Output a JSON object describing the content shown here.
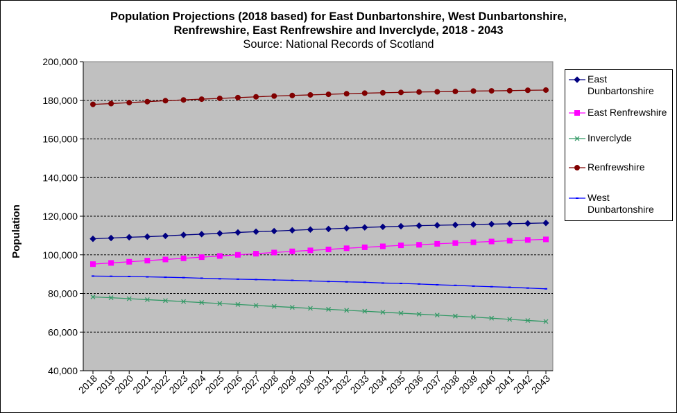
{
  "chart_data": {
    "type": "line",
    "title": "Population Projections (2018 based) for East Dunbartonshire, West Dunbartonshire,",
    "title_line2": "Renfrewshire, East Renfrewshire and Inverclyde, 2018 - 2043",
    "subtitle": "Source: National Records of Scotland",
    "xlabel": "",
    "ylabel": "Population",
    "ylim": [
      40000,
      200000
    ],
    "yticks": [
      40000,
      60000,
      80000,
      100000,
      120000,
      140000,
      160000,
      180000,
      200000
    ],
    "ytick_labels": [
      "40,000",
      "60,000",
      "80,000",
      "100,000",
      "120,000",
      "140,000",
      "160,000",
      "180,000",
      "200,000"
    ],
    "grid": true,
    "legend_position": "right",
    "categories": [
      "2018",
      "2019",
      "2020",
      "2021",
      "2022",
      "2023",
      "2024",
      "2025",
      "2026",
      "2027",
      "2028",
      "2029",
      "2030",
      "2031",
      "2032",
      "2033",
      "2034",
      "2035",
      "2036",
      "2037",
      "2038",
      "2039",
      "2040",
      "2041",
      "2042",
      "2043"
    ],
    "series": [
      {
        "name": "East Dunbartonshire",
        "legend_label": [
          "East",
          "Dunbartonshire"
        ],
        "color": "#000080",
        "marker": "diamond",
        "values": [
          108300,
          108700,
          109100,
          109400,
          109800,
          110300,
          110700,
          111100,
          111600,
          112000,
          112300,
          112700,
          113100,
          113400,
          113800,
          114200,
          114500,
          114800,
          115100,
          115300,
          115500,
          115700,
          115900,
          116100,
          116300,
          116500
        ]
      },
      {
        "name": "East Renfrewshire",
        "legend_label": [
          "East Renfrewshire"
        ],
        "color": "#FF00FF",
        "marker": "square",
        "values": [
          95200,
          95800,
          96400,
          97000,
          97600,
          98200,
          98800,
          99400,
          100000,
          100600,
          101200,
          101800,
          102300,
          102800,
          103400,
          103900,
          104400,
          104900,
          105200,
          105700,
          106100,
          106500,
          106900,
          107300,
          107700,
          108000
        ]
      },
      {
        "name": "Inverclyde",
        "legend_label": [
          "Inverclyde"
        ],
        "color": "#339966",
        "marker": "x",
        "values": [
          78200,
          77800,
          77300,
          76800,
          76300,
          75800,
          75300,
          74800,
          74300,
          73800,
          73300,
          72800,
          72300,
          71800,
          71300,
          70800,
          70300,
          69800,
          69300,
          68800,
          68300,
          67800,
          67200,
          66600,
          66000,
          65500
        ]
      },
      {
        "name": "Renfrewshire",
        "legend_label": [
          "Renfrewshire"
        ],
        "color": "#800000",
        "marker": "circle",
        "values": [
          177900,
          178300,
          178800,
          179300,
          179800,
          180200,
          180600,
          181000,
          181400,
          181800,
          182200,
          182500,
          182800,
          183100,
          183400,
          183700,
          183900,
          184100,
          184300,
          184400,
          184600,
          184800,
          184900,
          185000,
          185200,
          185300
        ]
      },
      {
        "name": "West Dunbartonshire",
        "legend_label": [
          "West",
          "Dunbartonshire"
        ],
        "color": "#0000FF",
        "marker": "dash",
        "values": [
          89000,
          88900,
          88800,
          88600,
          88400,
          88200,
          87900,
          87600,
          87400,
          87200,
          87000,
          86800,
          86500,
          86200,
          86000,
          85800,
          85400,
          85200,
          84900,
          84500,
          84200,
          83800,
          83500,
          83200,
          82800,
          82400
        ]
      }
    ]
  }
}
